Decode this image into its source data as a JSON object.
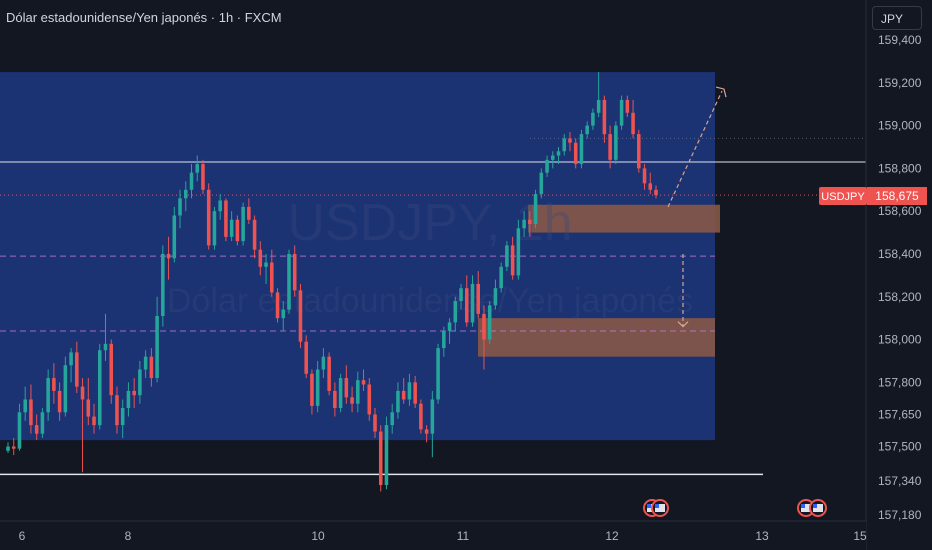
{
  "header": {
    "title": "Dólar estadounidense/Yen japonés · 1h · FXCM",
    "currency_button": "JPY"
  },
  "watermark": {
    "symbol": "USDJPY, 1h",
    "name": "Dólar estadounidense/Yen japonés"
  },
  "price_label": {
    "symbol": "USDJPY",
    "price": "158,675"
  },
  "colors": {
    "background": "#131722",
    "up": "#26a69a",
    "down": "#ef5350",
    "zone_blue": "#1e3a8a",
    "zone_brown": "#8d5a45",
    "axis_text": "#b2b5be"
  },
  "chart_data": {
    "type": "candlestick",
    "ylim": [
      157180,
      159420
    ],
    "y_ticks": [
      "159,400",
      "159,200",
      "159,000",
      "158,800",
      "158,600",
      "158,400",
      "158,200",
      "158,000",
      "157,800",
      "157,650",
      "157,500",
      "157,340",
      "157,180"
    ],
    "x_ticks": [
      "6",
      "8",
      "10",
      "11",
      "12",
      "13",
      "15"
    ],
    "horizontal_levels": [
      158830,
      157370
    ],
    "dotted_levels": [
      158675,
      158940
    ],
    "dashed_levels": [
      158390,
      158040
    ],
    "zones": [
      {
        "kind": "range",
        "from_price": 157530,
        "to_price": 159250
      },
      {
        "kind": "supply",
        "from_price": 158500,
        "to_price": 158630
      },
      {
        "kind": "demand",
        "from_price": 157920,
        "to_price": 158100
      }
    ],
    "projection": [
      {
        "price": 158620
      },
      {
        "price": 159180
      }
    ],
    "projection_down": [
      {
        "price": 158400
      },
      {
        "price": 158060
      }
    ],
    "candles": [
      [
        157480,
        157520,
        157470,
        157500
      ],
      [
        157500,
        157540,
        157460,
        157490
      ],
      [
        157490,
        157700,
        157480,
        157660
      ],
      [
        157660,
        157780,
        157620,
        157720
      ],
      [
        157720,
        157790,
        157560,
        157600
      ],
      [
        157600,
        157650,
        157530,
        157560
      ],
      [
        157560,
        157680,
        157540,
        157660
      ],
      [
        157660,
        157860,
        157620,
        157820
      ],
      [
        157820,
        157890,
        157700,
        157760
      ],
      [
        157760,
        157800,
        157620,
        157660
      ],
      [
        157660,
        157920,
        157640,
        157880
      ],
      [
        157880,
        157960,
        157800,
        157940
      ],
      [
        157940,
        157990,
        157750,
        157780
      ],
      [
        157780,
        157820,
        157380,
        157720
      ],
      [
        157720,
        157820,
        157600,
        157640
      ],
      [
        157640,
        157700,
        157560,
        157600
      ],
      [
        157600,
        157980,
        157580,
        157950
      ],
      [
        157950,
        158120,
        157900,
        157980
      ],
      [
        157980,
        158000,
        157700,
        157740
      ],
      [
        157740,
        157780,
        157560,
        157600
      ],
      [
        157600,
        157720,
        157540,
        157680
      ],
      [
        157680,
        157800,
        157640,
        157760
      ],
      [
        157760,
        157820,
        157680,
        157740
      ],
      [
        157740,
        157900,
        157700,
        157860
      ],
      [
        157860,
        157950,
        157820,
        157920
      ],
      [
        157920,
        157960,
        157780,
        157820
      ],
      [
        157820,
        158200,
        157800,
        158110
      ],
      [
        158110,
        158440,
        158060,
        158400
      ],
      [
        158400,
        158480,
        158280,
        158380
      ],
      [
        158380,
        158620,
        158360,
        158580
      ],
      [
        158580,
        158700,
        158520,
        158660
      ],
      [
        158660,
        158740,
        158600,
        158700
      ],
      [
        158700,
        158820,
        158660,
        158780
      ],
      [
        158780,
        158860,
        158740,
        158820
      ],
      [
        158820,
        158840,
        158680,
        158700
      ],
      [
        158700,
        158730,
        158420,
        158440
      ],
      [
        158440,
        158620,
        158420,
        158600
      ],
      [
        158600,
        158680,
        158560,
        158650
      ],
      [
        158650,
        158660,
        158460,
        158480
      ],
      [
        158480,
        158600,
        158460,
        158560
      ],
      [
        158560,
        158580,
        158440,
        158460
      ],
      [
        158460,
        158640,
        158440,
        158620
      ],
      [
        158620,
        158660,
        158540,
        158560
      ],
      [
        158560,
        158580,
        158380,
        158420
      ],
      [
        158420,
        158460,
        158300,
        158340
      ],
      [
        158340,
        158400,
        158260,
        158360
      ],
      [
        158360,
        158420,
        158200,
        158220
      ],
      [
        158220,
        158240,
        158080,
        158100
      ],
      [
        158100,
        158180,
        158040,
        158140
      ],
      [
        158140,
        158420,
        158120,
        158400
      ],
      [
        158400,
        158440,
        158200,
        158230
      ],
      [
        158230,
        158260,
        157960,
        157990
      ],
      [
        157990,
        158020,
        157820,
        157840
      ],
      [
        157840,
        157860,
        157650,
        157690
      ],
      [
        157690,
        157900,
        157660,
        157860
      ],
      [
        157860,
        157960,
        157820,
        157920
      ],
      [
        157920,
        157940,
        157740,
        157760
      ],
      [
        157760,
        157800,
        157640,
        157680
      ],
      [
        157680,
        157840,
        157660,
        157820
      ],
      [
        157820,
        157880,
        157700,
        157730
      ],
      [
        157730,
        157780,
        157660,
        157700
      ],
      [
        157700,
        157850,
        157660,
        157810
      ],
      [
        157810,
        157860,
        157760,
        157790
      ],
      [
        157790,
        157820,
        157620,
        157650
      ],
      [
        157650,
        157680,
        157540,
        157570
      ],
      [
        157570,
        157600,
        157290,
        157320
      ],
      [
        157320,
        157640,
        157300,
        157600
      ],
      [
        157600,
        157700,
        157560,
        157660
      ],
      [
        157660,
        157800,
        157630,
        157760
      ],
      [
        157760,
        157820,
        157700,
        157720
      ],
      [
        157720,
        157840,
        157690,
        157800
      ],
      [
        157800,
        157830,
        157680,
        157700
      ],
      [
        157700,
        157720,
        157560,
        157580
      ],
      [
        157580,
        157600,
        157520,
        157560
      ],
      [
        157560,
        157760,
        157450,
        157720
      ],
      [
        157720,
        157980,
        157700,
        157960
      ],
      [
        157960,
        158060,
        157920,
        158040
      ],
      [
        158040,
        158100,
        157980,
        158080
      ],
      [
        158080,
        158200,
        158040,
        158180
      ],
      [
        158180,
        158260,
        158140,
        158240
      ],
      [
        158240,
        158300,
        158060,
        158080
      ],
      [
        158080,
        158300,
        158060,
        158260
      ],
      [
        158260,
        158320,
        158100,
        158120
      ],
      [
        158120,
        158160,
        157860,
        158000
      ],
      [
        158000,
        158180,
        157980,
        158160
      ],
      [
        158160,
        158280,
        158140,
        158240
      ],
      [
        158240,
        158360,
        158220,
        158340
      ],
      [
        158340,
        158460,
        158320,
        158440
      ],
      [
        158440,
        158480,
        158280,
        158300
      ],
      [
        158300,
        158560,
        158280,
        158520
      ],
      [
        158520,
        158600,
        158480,
        158560
      ],
      [
        158560,
        158600,
        158480,
        158540
      ],
      [
        158540,
        158700,
        158520,
        158680
      ],
      [
        158680,
        158800,
        158660,
        158780
      ],
      [
        158780,
        158860,
        158760,
        158840
      ],
      [
        158840,
        158880,
        158800,
        158860
      ],
      [
        158860,
        158900,
        158820,
        158880
      ],
      [
        158880,
        158960,
        158860,
        158940
      ],
      [
        158940,
        158970,
        158880,
        158920
      ],
      [
        158920,
        158940,
        158800,
        158820
      ],
      [
        158820,
        158980,
        158800,
        158960
      ],
      [
        158960,
        159020,
        158940,
        159000
      ],
      [
        159000,
        159080,
        158980,
        159060
      ],
      [
        159060,
        159250,
        159040,
        159120
      ],
      [
        159120,
        159140,
        158920,
        158960
      ],
      [
        158960,
        159000,
        158800,
        158840
      ],
      [
        158840,
        159020,
        158820,
        159000
      ],
      [
        159000,
        159140,
        158980,
        159120
      ],
      [
        159120,
        159140,
        159040,
        159060
      ],
      [
        159060,
        159120,
        158940,
        158960
      ],
      [
        158960,
        158980,
        158780,
        158800
      ],
      [
        158800,
        158820,
        158700,
        158730
      ],
      [
        158730,
        158780,
        158680,
        158700
      ],
      [
        158700,
        158720,
        158660,
        158675
      ]
    ]
  }
}
